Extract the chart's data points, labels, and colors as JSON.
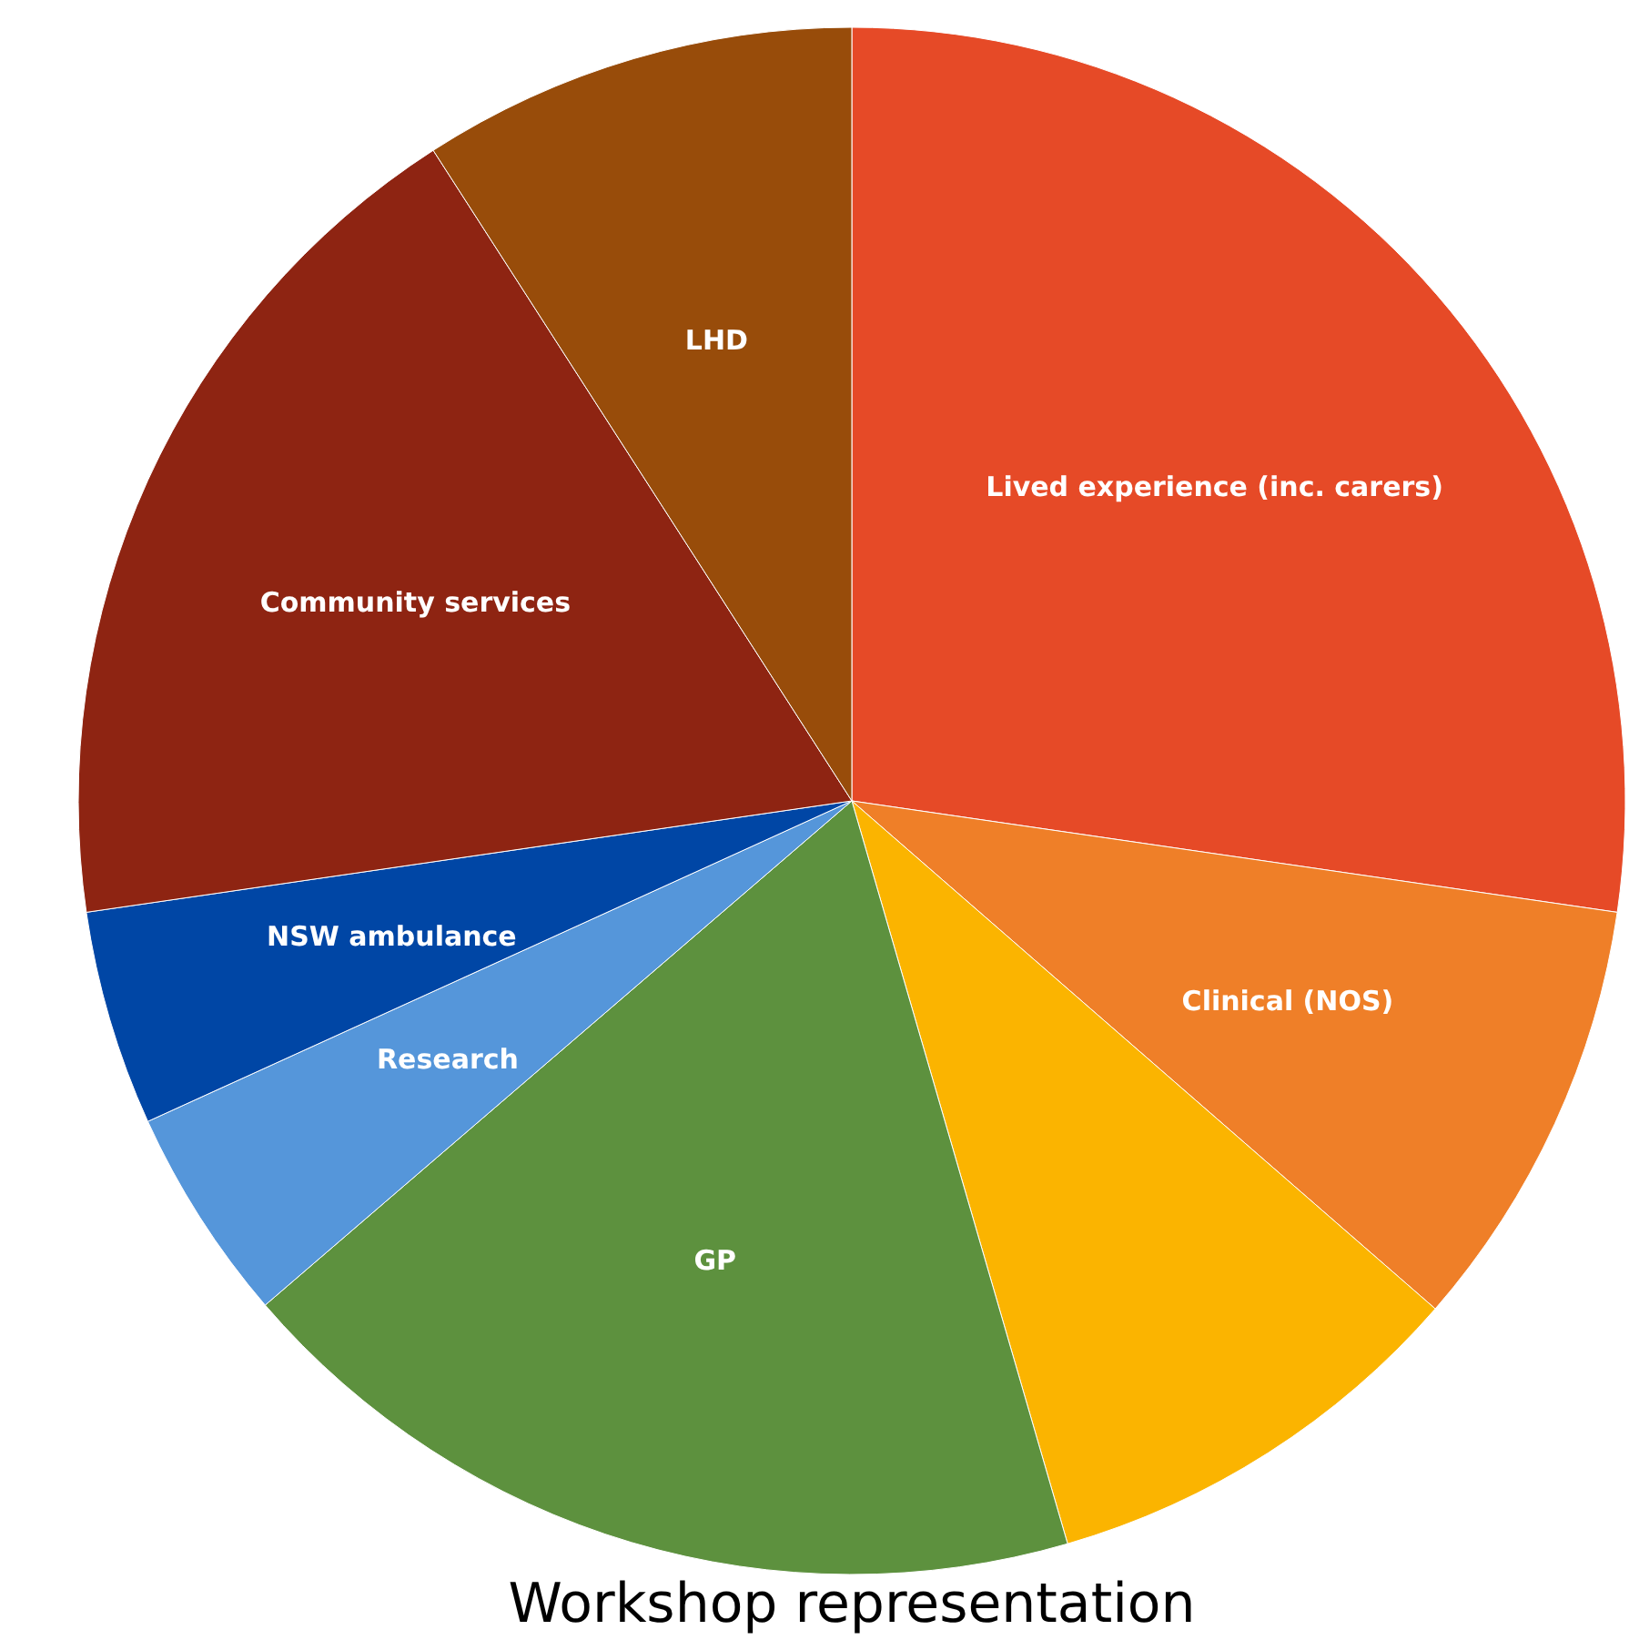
{
  "chart_data": {
    "type": "pie",
    "title": "Workshop representation",
    "categories": [
      "Lived experience (inc. carers)",
      "Clinical (NOS)",
      null,
      "GP",
      "Research",
      "NSW ambulance",
      "Community services",
      "LHD"
    ],
    "values": [
      27.3,
      9.1,
      9.1,
      18.2,
      4.5,
      4.5,
      18.2,
      9.1
    ],
    "colors": [
      "#e64a27",
      "#ef7f28",
      "#fbb400",
      "#5d913e",
      "#5596da",
      "#0046a5",
      "#8e2412",
      "#984c0a"
    ]
  }
}
